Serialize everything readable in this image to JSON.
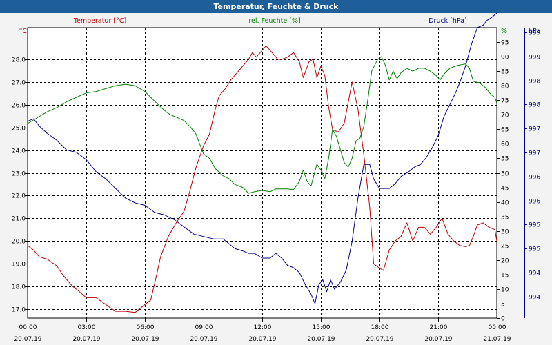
{
  "window": {
    "title": "Temperatur, Feuchte & Druck"
  },
  "colors": {
    "temperature": "#c00000",
    "humidity": "#008000",
    "pressure": "#00008c",
    "grid": "#000000",
    "axis_text": "#000000",
    "plot_bg": "#ffffff"
  },
  "chart_data": {
    "type": "line",
    "title": "Temperatur, Feuchte & Druck",
    "x": {
      "range_hours": [
        0,
        24
      ],
      "ticks": [
        {
          "h": 0,
          "time": "00:00",
          "date": "20.07.19"
        },
        {
          "h": 3,
          "time": "03:00",
          "date": "20.07.19"
        },
        {
          "h": 6,
          "time": "06:00",
          "date": "20.07.19"
        },
        {
          "h": 9,
          "time": "09:00",
          "date": "20.07.19"
        },
        {
          "h": 12,
          "time": "12:00",
          "date": "20.07.19"
        },
        {
          "h": 15,
          "time": "15:00",
          "date": "20.07.19"
        },
        {
          "h": 18,
          "time": "18:00",
          "date": "20.07.19"
        },
        {
          "h": 21,
          "time": "21:00",
          "date": "20.07.19"
        },
        {
          "h": 24,
          "time": "00:00",
          "date": "21.07.19"
        }
      ]
    },
    "axes": {
      "temperature": {
        "label": "Temperatur [°C]",
        "unit": "°C",
        "range": [
          16.6,
          29.4
        ],
        "ticks": [
          17.0,
          18.0,
          19.0,
          20.0,
          21.0,
          22.0,
          23.0,
          24.0,
          25.0,
          26.0,
          27.0,
          28.0
        ],
        "tick_labels": [
          "17.0",
          "18.0",
          "19.0",
          "20.0",
          "21.0",
          "22.0",
          "23.0",
          "24.0",
          "25.0",
          "26.0",
          "27.0",
          "28.0"
        ]
      },
      "humidity": {
        "label": "rel. Feuchte [%]",
        "unit": "%",
        "range": [
          0,
          100
        ],
        "ticks": [
          0,
          5,
          10,
          15,
          20,
          25,
          30,
          35,
          40,
          45,
          50,
          55,
          60,
          65,
          70,
          75,
          80,
          85,
          90,
          95
        ],
        "tick_labels": [
          "0",
          "5",
          "10",
          "15",
          "20",
          "25",
          "30",
          "35",
          "40",
          "45",
          "50",
          "55",
          "60",
          "65",
          "70",
          "75",
          "80",
          "85",
          "90",
          "95"
        ]
      },
      "pressure": {
        "label": "Druck [hPa]",
        "unit": "hPa",
        "range": [
          993.3,
          999.35
        ],
        "ticks": [
          993.75,
          994.25,
          994.75,
          995.25,
          995.75,
          996.25,
          996.75,
          997.25,
          997.75,
          998.25,
          998.75,
          999.25
        ],
        "tick_labels": [
          "994",
          "994",
          "995",
          "995",
          "996",
          "996",
          "997",
          "997",
          "998",
          "998",
          "999",
          "999"
        ]
      }
    },
    "series": [
      {
        "name": "Temperatur [°C]",
        "axis": "temperature",
        "points": [
          [
            0,
            19.8
          ],
          [
            0.3,
            19.6
          ],
          [
            0.6,
            19.3
          ],
          [
            1,
            19.2
          ],
          [
            1.5,
            18.9
          ],
          [
            1.8,
            18.5
          ],
          [
            2.3,
            18.0
          ],
          [
            2.6,
            17.8
          ],
          [
            3,
            17.5
          ],
          [
            3.5,
            17.5
          ],
          [
            4,
            17.2
          ],
          [
            4.5,
            16.9
          ],
          [
            5,
            16.9
          ],
          [
            5.5,
            16.85
          ],
          [
            6,
            17.2
          ],
          [
            6.3,
            17.4
          ],
          [
            6.6,
            18.5
          ],
          [
            6.8,
            19.3
          ],
          [
            7.2,
            20.2
          ],
          [
            7.6,
            20.8
          ],
          [
            8,
            21.3
          ],
          [
            8.3,
            22.2
          ],
          [
            8.6,
            23.2
          ],
          [
            9,
            24.2
          ],
          [
            9.3,
            24.7
          ],
          [
            9.6,
            25.8
          ],
          [
            9.8,
            26.4
          ],
          [
            10.1,
            26.7
          ],
          [
            10.4,
            27.1
          ],
          [
            10.7,
            27.4
          ],
          [
            11,
            27.7
          ],
          [
            11.3,
            28.0
          ],
          [
            11.5,
            28.3
          ],
          [
            11.7,
            28.1
          ],
          [
            12,
            28.4
          ],
          [
            12.2,
            28.6
          ],
          [
            12.5,
            28.3
          ],
          [
            12.8,
            28.0
          ],
          [
            13,
            28.0
          ],
          [
            13.3,
            28.1
          ],
          [
            13.6,
            28.3
          ],
          [
            13.9,
            27.9
          ],
          [
            14.1,
            27.2
          ],
          [
            14.4,
            27.9
          ],
          [
            14.6,
            28.0
          ],
          [
            14.8,
            27.2
          ],
          [
            15,
            27.7
          ],
          [
            15.2,
            27.3
          ],
          [
            15.4,
            25.9
          ],
          [
            15.6,
            24.9
          ],
          [
            15.9,
            24.8
          ],
          [
            16.2,
            25.2
          ],
          [
            16.6,
            27.0
          ],
          [
            16.9,
            25.8
          ],
          [
            17.2,
            23.8
          ],
          [
            17.5,
            21.5
          ],
          [
            17.7,
            19.0
          ],
          [
            18,
            18.8
          ],
          [
            18.2,
            18.7
          ],
          [
            18.5,
            19.6
          ],
          [
            18.8,
            20.0
          ],
          [
            19.1,
            20.2
          ],
          [
            19.4,
            20.8
          ],
          [
            19.7,
            20.0
          ],
          [
            20,
            20.6
          ],
          [
            20.3,
            20.6
          ],
          [
            20.6,
            20.3
          ],
          [
            20.9,
            20.6
          ],
          [
            21.2,
            21.0
          ],
          [
            21.5,
            20.3
          ],
          [
            21.8,
            20.0
          ],
          [
            22.1,
            19.8
          ],
          [
            22.4,
            19.75
          ],
          [
            22.6,
            19.8
          ],
          [
            22.8,
            20.2
          ],
          [
            23,
            20.7
          ],
          [
            23.3,
            20.8
          ],
          [
            23.6,
            20.6
          ],
          [
            23.9,
            20.5
          ],
          [
            24,
            20.0
          ]
        ]
      },
      {
        "name": "rel. Feuchte [%]",
        "axis": "humidity",
        "points": [
          [
            0,
            67
          ],
          [
            0.5,
            69
          ],
          [
            1,
            71
          ],
          [
            1.5,
            72.5
          ],
          [
            2,
            74.5
          ],
          [
            2.5,
            76
          ],
          [
            3,
            77.5
          ],
          [
            3.5,
            78
          ],
          [
            4,
            79
          ],
          [
            4.5,
            80
          ],
          [
            5,
            80.5
          ],
          [
            5.5,
            80
          ],
          [
            6,
            78
          ],
          [
            6.3,
            76
          ],
          [
            6.6,
            74
          ],
          [
            7,
            71.5
          ],
          [
            7.3,
            70
          ],
          [
            7.6,
            69.2
          ],
          [
            8,
            68
          ],
          [
            8.3,
            66
          ],
          [
            8.6,
            63.5
          ],
          [
            9,
            56.5
          ],
          [
            9.3,
            55
          ],
          [
            9.6,
            51.5
          ],
          [
            10,
            49
          ],
          [
            10.3,
            48
          ],
          [
            10.6,
            46
          ],
          [
            11,
            45
          ],
          [
            11.3,
            43
          ],
          [
            11.6,
            43.5
          ],
          [
            12,
            44
          ],
          [
            12.4,
            43.5
          ],
          [
            12.7,
            44.5
          ],
          [
            13,
            44.5
          ],
          [
            13.3,
            44.5
          ],
          [
            13.6,
            44.2
          ],
          [
            13.9,
            47
          ],
          [
            14.1,
            51
          ],
          [
            14.3,
            47
          ],
          [
            14.5,
            45.5
          ],
          [
            14.8,
            53
          ],
          [
            15,
            51
          ],
          [
            15.2,
            48
          ],
          [
            15.4,
            55
          ],
          [
            15.6,
            65
          ],
          [
            15.8,
            62.5
          ],
          [
            16,
            58
          ],
          [
            16.2,
            53.5
          ],
          [
            16.4,
            52
          ],
          [
            16.6,
            55
          ],
          [
            16.8,
            61
          ],
          [
            17,
            62
          ],
          [
            17.2,
            66
          ],
          [
            17.4,
            75
          ],
          [
            17.6,
            85
          ],
          [
            17.9,
            89
          ],
          [
            18.1,
            90
          ],
          [
            18.3,
            87
          ],
          [
            18.5,
            82
          ],
          [
            18.7,
            85
          ],
          [
            18.9,
            82.5
          ],
          [
            19.1,
            84.5
          ],
          [
            19.4,
            86
          ],
          [
            19.7,
            85
          ],
          [
            20,
            86
          ],
          [
            20.3,
            86
          ],
          [
            20.6,
            85
          ],
          [
            20.9,
            83.5
          ],
          [
            21.1,
            82
          ],
          [
            21.3,
            84
          ],
          [
            21.6,
            86
          ],
          [
            22,
            87
          ],
          [
            22.4,
            87.5
          ],
          [
            22.6,
            86
          ],
          [
            22.8,
            81.5
          ],
          [
            23.1,
            81
          ],
          [
            23.4,
            79.5
          ],
          [
            23.7,
            77
          ],
          [
            23.9,
            76
          ],
          [
            24,
            74
          ]
        ]
      },
      {
        "name": "Druck [hPa]",
        "axis": "pressure",
        "points": [
          [
            0,
            997.4
          ],
          [
            0.3,
            997.45
          ],
          [
            0.6,
            997.3
          ],
          [
            1,
            997.15
          ],
          [
            1.5,
            997.0
          ],
          [
            2,
            996.8
          ],
          [
            2.5,
            996.75
          ],
          [
            3,
            996.6
          ],
          [
            3.5,
            996.35
          ],
          [
            4,
            996.2
          ],
          [
            4.5,
            996.0
          ],
          [
            5,
            995.8
          ],
          [
            5.5,
            995.7
          ],
          [
            6,
            995.65
          ],
          [
            6.5,
            995.5
          ],
          [
            7,
            995.45
          ],
          [
            7.5,
            995.35
          ],
          [
            8,
            995.2
          ],
          [
            8.5,
            995.05
          ],
          [
            9,
            995.0
          ],
          [
            9.5,
            994.95
          ],
          [
            10,
            994.95
          ],
          [
            10.3,
            994.85
          ],
          [
            10.6,
            994.75
          ],
          [
            11,
            994.7
          ],
          [
            11.3,
            994.65
          ],
          [
            11.6,
            994.65
          ],
          [
            12,
            994.55
          ],
          [
            12.4,
            994.55
          ],
          [
            12.7,
            994.65
          ],
          [
            13,
            994.55
          ],
          [
            13.3,
            994.4
          ],
          [
            13.6,
            994.35
          ],
          [
            13.9,
            994.25
          ],
          [
            14.2,
            994.0
          ],
          [
            14.5,
            993.8
          ],
          [
            14.7,
            993.6
          ],
          [
            14.9,
            994.0
          ],
          [
            15.1,
            994.1
          ],
          [
            15.3,
            993.85
          ],
          [
            15.5,
            994.1
          ],
          [
            15.7,
            993.9
          ],
          [
            16,
            994.05
          ],
          [
            16.3,
            994.3
          ],
          [
            16.6,
            994.9
          ],
          [
            16.9,
            995.8
          ],
          [
            17.2,
            996.5
          ],
          [
            17.5,
            996.5
          ],
          [
            17.7,
            996.2
          ],
          [
            18,
            996.0
          ],
          [
            18.2,
            996.0
          ],
          [
            18.5,
            996.0
          ],
          [
            18.8,
            996.1
          ],
          [
            19.1,
            996.25
          ],
          [
            19.5,
            996.35
          ],
          [
            19.8,
            996.45
          ],
          [
            20.1,
            996.5
          ],
          [
            20.4,
            996.65
          ],
          [
            20.7,
            996.85
          ],
          [
            21.0,
            997.1
          ],
          [
            21.3,
            997.5
          ],
          [
            21.6,
            997.75
          ],
          [
            21.9,
            998.0
          ],
          [
            22.1,
            998.2
          ],
          [
            22.4,
            998.55
          ],
          [
            22.7,
            999.0
          ],
          [
            23.0,
            999.35
          ],
          [
            23.3,
            999.4
          ],
          [
            23.5,
            999.5
          ],
          [
            23.7,
            999.55
          ],
          [
            24,
            999.65
          ]
        ]
      }
    ]
  }
}
